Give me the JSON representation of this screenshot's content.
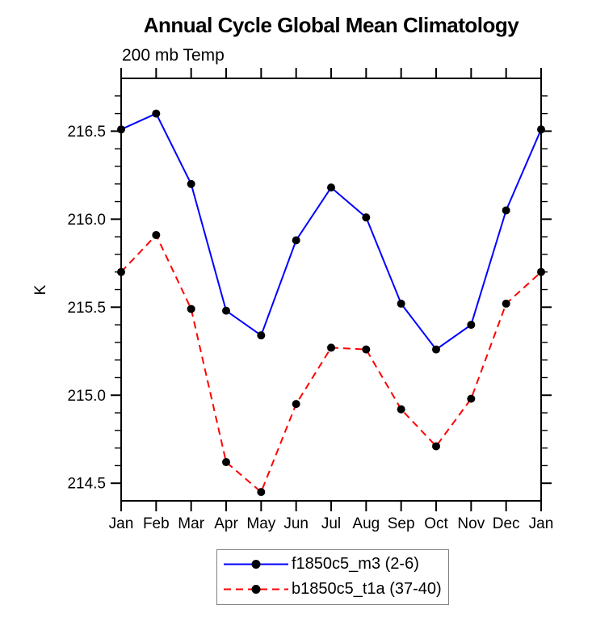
{
  "chart_data": {
    "type": "line",
    "title": "Annual Cycle Global Mean Climatology",
    "subtitle": "200 mb Temp",
    "ylabel": "K",
    "categories": [
      "Jan",
      "Feb",
      "Mar",
      "Apr",
      "May",
      "Jun",
      "Jul",
      "Aug",
      "Sep",
      "Oct",
      "Nov",
      "Dec",
      "Jan"
    ],
    "ylim": [
      214.4,
      216.8
    ],
    "yticks": [
      216.5,
      216.0,
      215.5,
      215.0,
      214.5
    ],
    "ytick_labels": [
      "216.5",
      "216.0",
      "215.5",
      "215.0",
      "214.5"
    ],
    "minor_tick_step": 0.1,
    "grid": false,
    "legend_position": "bottom-center",
    "marker_color": "#000000",
    "axis_color": "#000000",
    "series": [
      {
        "name": "f1850c5_m3 (2-6)",
        "color": "#0000ff",
        "style": "solid",
        "values": [
          216.51,
          216.6,
          216.2,
          215.48,
          215.34,
          215.88,
          216.18,
          216.01,
          215.52,
          215.26,
          215.4,
          216.05,
          216.51
        ]
      },
      {
        "name": "b1850c5_t1a (37-40)",
        "color": "#ff0000",
        "style": "dashed",
        "values": [
          215.7,
          215.91,
          215.49,
          214.62,
          214.45,
          214.95,
          215.27,
          215.26,
          214.92,
          214.71,
          214.98,
          215.52,
          215.7
        ]
      }
    ]
  }
}
